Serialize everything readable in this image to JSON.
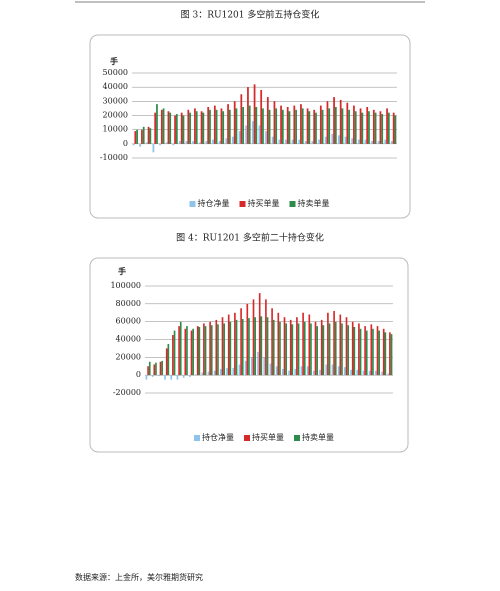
{
  "chart_data": [
    {
      "type": "bar",
      "title": "图 3：RU1201 多空前五持仓变化",
      "ylabel": "手",
      "categories": [
        null,
        null,
        null,
        null,
        null,
        null,
        null,
        null,
        null,
        null,
        null,
        null,
        null,
        null,
        null,
        null,
        null,
        null,
        null,
        null,
        null,
        null,
        null,
        null,
        null,
        null,
        null,
        null,
        null,
        null,
        null,
        null,
        null,
        null,
        null,
        null,
        null,
        null,
        null,
        null
      ],
      "series": [
        {
          "name": "持仓净量",
          "color": "#8ec3ea",
          "values": [
            -1000,
            -2000,
            1000,
            -6000,
            -1000,
            1000,
            -1000,
            2000,
            2000,
            2000,
            1000,
            2000,
            3000,
            2000,
            4000,
            5000,
            9000,
            13000,
            16000,
            13000,
            9000,
            5000,
            3000,
            3000,
            3000,
            3000,
            2000,
            2000,
            3000,
            5000,
            7000,
            6000,
            5000,
            4000,
            3000,
            3000,
            2000,
            2000,
            3000,
            2000
          ]
        },
        {
          "name": "持买单量",
          "color": "#d62a2a",
          "values": [
            9000,
            10000,
            12000,
            22000,
            24000,
            23000,
            20000,
            22000,
            24000,
            25000,
            23000,
            26000,
            27000,
            25000,
            28000,
            30000,
            35000,
            40000,
            42000,
            38000,
            33000,
            30000,
            27000,
            26000,
            27000,
            28000,
            25000,
            24000,
            27000,
            30000,
            33000,
            31000,
            29000,
            27000,
            25000,
            26000,
            24000,
            23000,
            25000,
            22000
          ]
        },
        {
          "name": "持卖单量",
          "color": "#2e8b4a",
          "values": [
            10000,
            12000,
            11000,
            28000,
            25000,
            22000,
            21000,
            20000,
            22000,
            23000,
            22000,
            24000,
            24000,
            23000,
            24000,
            25000,
            26000,
            27000,
            26000,
            25000,
            24000,
            25000,
            24000,
            23000,
            24000,
            25000,
            23000,
            22000,
            24000,
            25000,
            26000,
            25000,
            24000,
            23000,
            22000,
            23000,
            22000,
            21000,
            22000,
            20000
          ]
        }
      ],
      "ylim": [
        -10000,
        50000
      ],
      "yticks": [
        -10000,
        0,
        10000,
        20000,
        30000,
        40000,
        50000
      ],
      "grid": true,
      "legend": "bottom"
    },
    {
      "type": "bar",
      "title": "图 4：RU1201 多空前二十持仓变化",
      "ylabel": "手",
      "categories": [
        null,
        null,
        null,
        null,
        null,
        null,
        null,
        null,
        null,
        null,
        null,
        null,
        null,
        null,
        null,
        null,
        null,
        null,
        null,
        null,
        null,
        null,
        null,
        null,
        null,
        null,
        null,
        null,
        null,
        null,
        null,
        null,
        null,
        null,
        null,
        null,
        null,
        null,
        null,
        null
      ],
      "series": [
        {
          "name": "持仓净量",
          "color": "#8ec3ea",
          "values": [
            -5000,
            -2000,
            -1000,
            -5000,
            -5000,
            -5000,
            -3000,
            -2000,
            1000,
            3000,
            4000,
            5000,
            7000,
            8000,
            8000,
            12000,
            16000,
            20000,
            26000,
            20000,
            13000,
            10000,
            7000,
            5000,
            7000,
            10000,
            10000,
            5000,
            6000,
            12000,
            12000,
            10000,
            9000,
            6000,
            6000,
            5000,
            5000,
            5000,
            4000,
            2000
          ]
        },
        {
          "name": "持买单量",
          "color": "#d62a2a",
          "values": [
            10000,
            12000,
            15000,
            30000,
            45000,
            55000,
            52000,
            50000,
            55000,
            58000,
            60000,
            62000,
            65000,
            68000,
            70000,
            75000,
            80000,
            85000,
            92000,
            85000,
            75000,
            70000,
            65000,
            62000,
            65000,
            70000,
            68000,
            60000,
            62000,
            70000,
            72000,
            68000,
            65000,
            60000,
            58000,
            55000,
            57000,
            55000,
            52000,
            48000
          ]
        },
        {
          "name": "持卖单量",
          "color": "#2e8b4a",
          "values": [
            15000,
            14000,
            16000,
            35000,
            50000,
            60000,
            55000,
            52000,
            54000,
            55000,
            56000,
            57000,
            58000,
            60000,
            62000,
            63000,
            64000,
            65000,
            66000,
            65000,
            62000,
            60000,
            58000,
            57000,
            58000,
            60000,
            58000,
            55000,
            56000,
            58000,
            60000,
            58000,
            56000,
            54000,
            52000,
            50000,
            52000,
            50000,
            48000,
            46000
          ]
        }
      ],
      "ylim": [
        -20000,
        100000
      ],
      "yticks": [
        -20000,
        0,
        20000,
        40000,
        60000,
        80000,
        100000
      ],
      "grid": true,
      "legend": "bottom"
    }
  ],
  "source": "数据来源：上金所，美尔雅期货研究"
}
